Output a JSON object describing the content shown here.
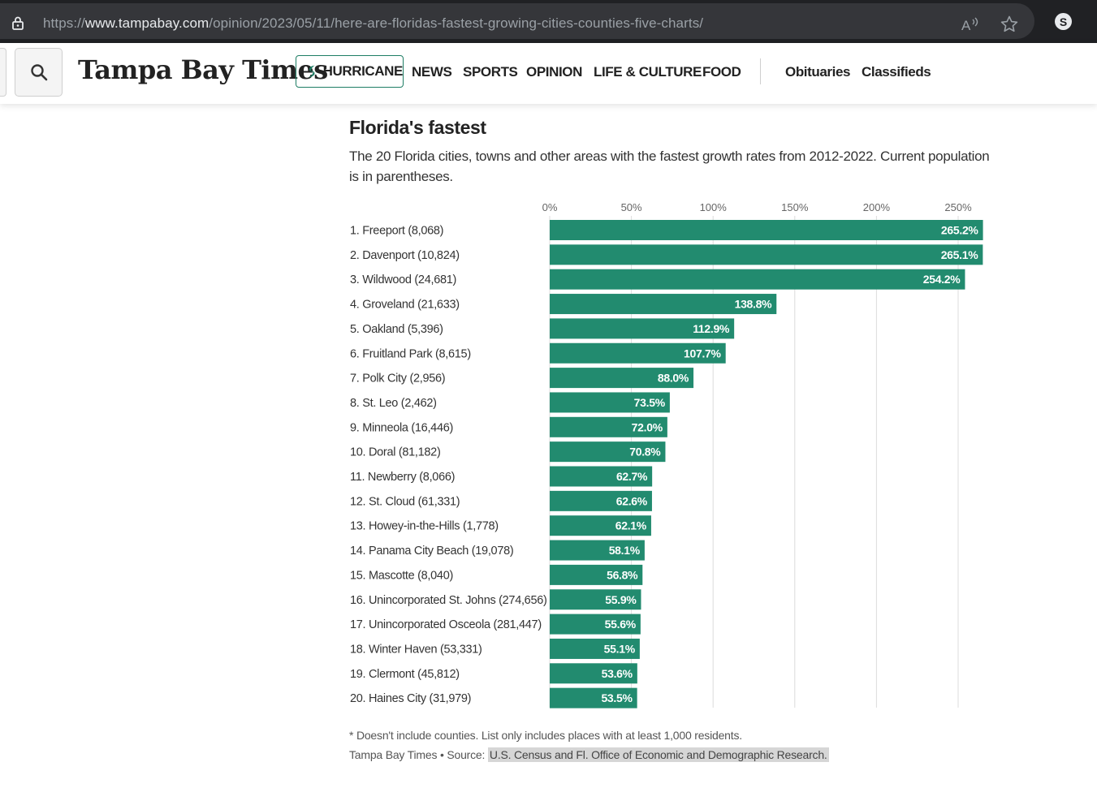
{
  "browser": {
    "url_prefix": "https://",
    "url_host": "www.tampabay.com",
    "url_path": "/opinion/2023/05/11/here-are-floridas-fastest-growing-cities-counties-five-charts/",
    "icons": [
      "lock-icon",
      "read-aloud-icon",
      "favorite-star-icon",
      "profile-icon"
    ],
    "profile_initial": "S"
  },
  "header": {
    "logo": "Tampa Bay Times",
    "hurricane_label": "HURRICANE",
    "nav": [
      "NEWS",
      "SPORTS",
      "OPINION",
      "LIFE & CULTURE",
      "FOOD"
    ],
    "secondary_nav": [
      "Obituaries",
      "Classifieds"
    ],
    "accent_color": "#1e7d64"
  },
  "chart": {
    "title": "Florida's fastest",
    "subtitle": "The 20 Florida cities, towns and other areas with the fastest growth rates from 2012-2022. Current population is in parentheses.",
    "note": "* Doesn't include counties. List only includes places with at least 1,000 residents.",
    "credit_prefix": "Tampa Bay Times • Source:",
    "credit_source": "U.S. Census and Fl. Office of Economic and Demographic Research."
  },
  "chart_data": {
    "type": "bar",
    "orientation": "horizontal",
    "bar_color": "#228b6f",
    "title": "Florida's fastest",
    "xlim": [
      0,
      265.2
    ],
    "x_ticks": [
      "0%",
      "50%",
      "100%",
      "150%",
      "200%",
      "250%"
    ],
    "x_tick_values": [
      0,
      50,
      100,
      150,
      200,
      250
    ],
    "grid": true,
    "categories": [
      "1. Freeport (8,068)",
      "2. Davenport (10,824)",
      "3. Wildwood (24,681)",
      "4. Groveland (21,633)",
      "5. Oakland (5,396)",
      "6. Fruitland Park (8,615)",
      "7. Polk City (2,956)",
      "8. St. Leo (2,462)",
      "9. Minneola (16,446)",
      "10. Doral (81,182)",
      "11. Newberry (8,066)",
      "12. St. Cloud (61,331)",
      "13. Howey-in-the-Hills (1,778)",
      "14. Panama City Beach (19,078)",
      "15. Mascotte (8,040)",
      "16. Unincorporated St. Johns (274,656)",
      "17. Unincorporated Osceola (281,447)",
      "18. Winter Haven (53,331)",
      "19. Clermont (45,812)",
      "20. Haines City (31,979)"
    ],
    "values": [
      265.2,
      265.1,
      254.2,
      138.8,
      112.9,
      107.7,
      88.0,
      73.5,
      72.0,
      70.8,
      62.7,
      62.6,
      62.1,
      58.1,
      56.8,
      55.9,
      55.6,
      55.1,
      53.6,
      53.5
    ],
    "value_labels": [
      "265.2%",
      "265.1%",
      "254.2%",
      "138.8%",
      "112.9%",
      "107.7%",
      "88.0%",
      "73.5%",
      "72.0%",
      "70.8%",
      "62.7%",
      "62.6%",
      "62.1%",
      "58.1%",
      "56.8%",
      "55.9%",
      "55.6%",
      "55.1%",
      "53.6%",
      "53.5%"
    ]
  }
}
